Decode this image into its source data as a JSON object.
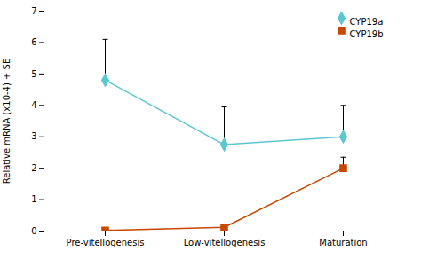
{
  "chart_data": {
    "type": "line",
    "categories": [
      "Pre-vitellogenesis",
      "Low-vitellogenesis",
      "Maturation"
    ],
    "series": [
      {
        "name": "CYP19a",
        "color": "#5bc8d0",
        "marker": "diamond",
        "values": [
          4.8,
          2.75,
          3.0
        ],
        "yerr_lower": [
          0.0,
          0.0,
          0.0
        ],
        "yerr_upper": [
          1.3,
          1.2,
          1.0
        ]
      },
      {
        "name": "CYP19b",
        "color": "#c84800",
        "marker": "square",
        "values": [
          0.02,
          0.12,
          2.0
        ],
        "yerr_lower": [
          0.0,
          0.0,
          0.0
        ],
        "yerr_upper": [
          0.0,
          0.0,
          0.35
        ]
      }
    ],
    "ylabel": "Relative mRNA (x10-4) + SE",
    "ylim": [
      0,
      7
    ],
    "yticks": [
      0,
      1,
      2,
      3,
      4,
      5,
      6,
      7
    ],
    "grid": false,
    "legend": "upper right"
  }
}
